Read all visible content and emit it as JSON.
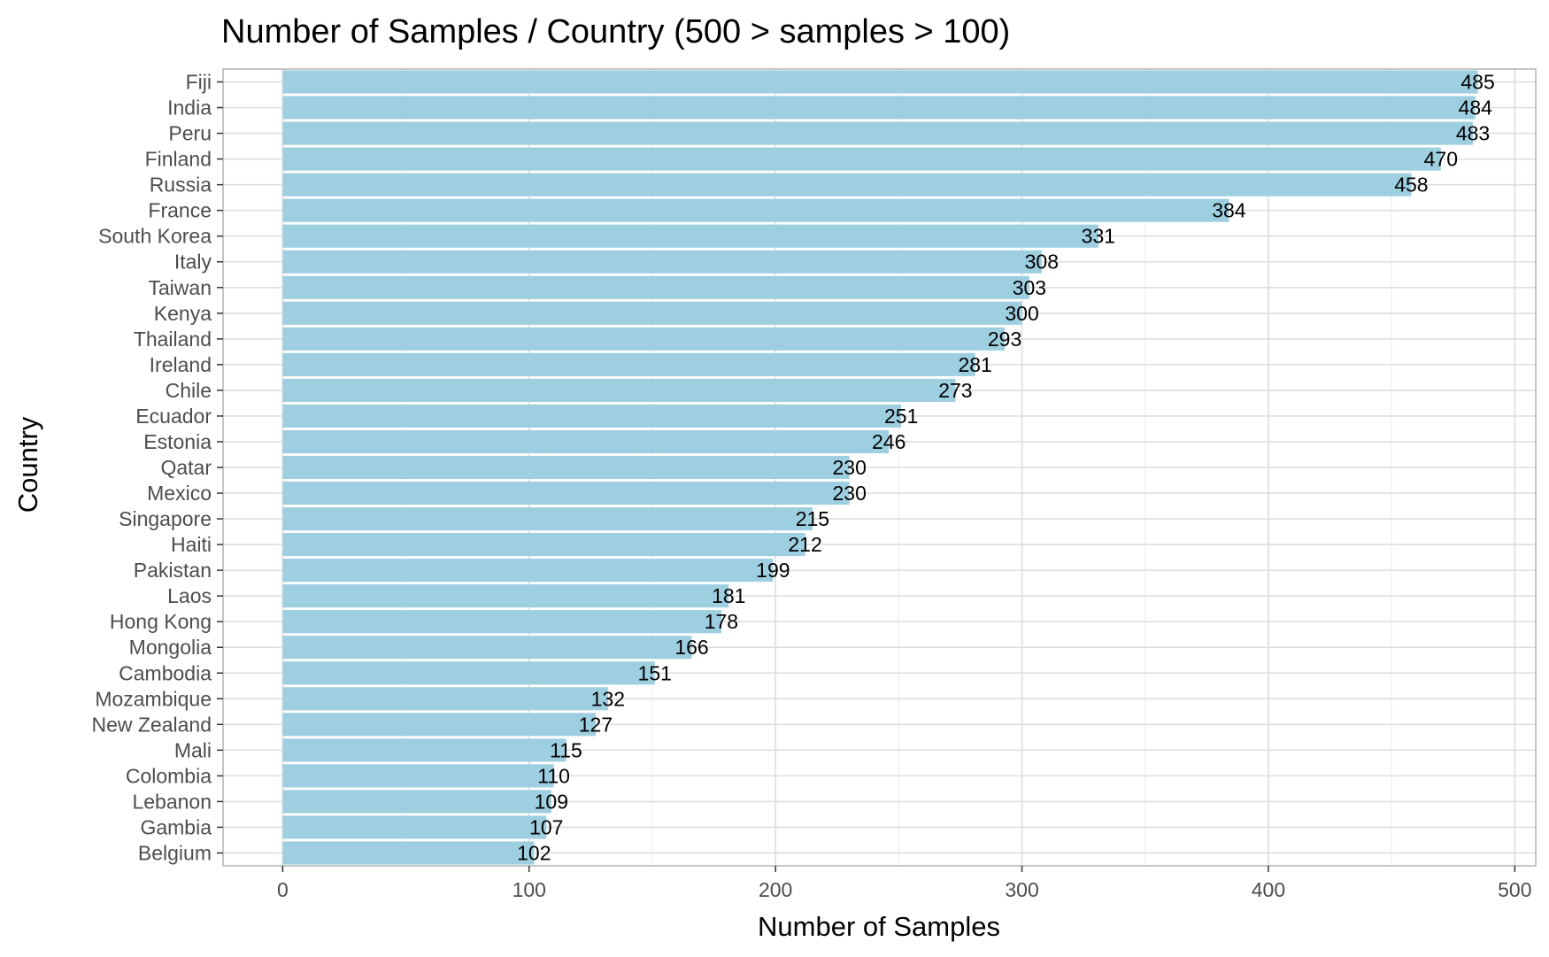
{
  "chart_data": {
    "type": "bar",
    "orientation": "horizontal",
    "title": "Number of Samples / Country (500 > samples > 100)",
    "xlabel": "Number of Samples",
    "ylabel": "Country",
    "xlim": [
      -24.2,
      508.5
    ],
    "xticks": [
      0,
      100,
      200,
      300,
      400,
      500
    ],
    "grid": true,
    "bar_color": "#9ecfe1",
    "categories": [
      "Fiji",
      "India",
      "Peru",
      "Finland",
      "Russia",
      "France",
      "South Korea",
      "Italy",
      "Taiwan",
      "Kenya",
      "Thailand",
      "Ireland",
      "Chile",
      "Ecuador",
      "Estonia",
      "Qatar",
      "Mexico",
      "Singapore",
      "Haiti",
      "Pakistan",
      "Laos",
      "Hong Kong",
      "Mongolia",
      "Cambodia",
      "Mozambique",
      "New Zealand",
      "Mali",
      "Colombia",
      "Lebanon",
      "Gambia",
      "Belgium"
    ],
    "values": [
      485,
      484,
      483,
      470,
      458,
      384,
      331,
      308,
      303,
      300,
      293,
      281,
      273,
      251,
      246,
      230,
      230,
      215,
      212,
      199,
      181,
      178,
      166,
      151,
      132,
      127,
      115,
      110,
      109,
      107,
      102
    ]
  }
}
